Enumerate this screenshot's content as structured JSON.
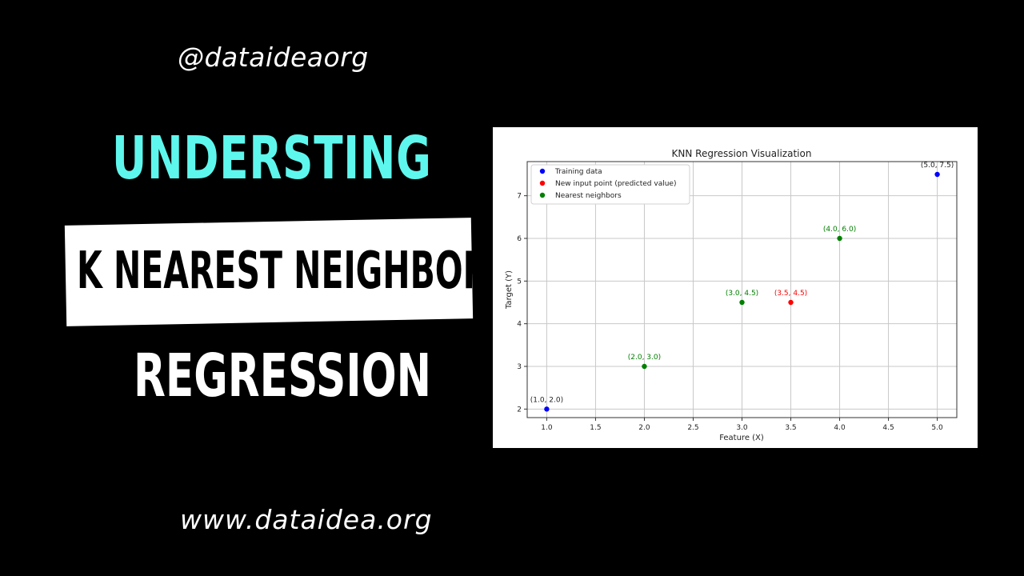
{
  "header": {
    "handle": "@dataideaorg"
  },
  "headline": {
    "line1": "UNDERSTING",
    "line2": "K NEAREST NEIGHBORS",
    "line3": "REGRESSION"
  },
  "footer": {
    "url": "www.dataidea.org"
  },
  "colors": {
    "background": "#000000",
    "accent": "#5ef7ee",
    "training": "#0000ff",
    "new_point": "#ff0000",
    "neighbors": "#008000"
  },
  "chart_data": {
    "type": "scatter",
    "title": "KNN Regression Visualization",
    "xlabel": "Feature (X)",
    "ylabel": "Target (Y)",
    "xlim": [
      0.8,
      5.2
    ],
    "ylim": [
      1.8,
      7.8
    ],
    "xticks": [
      "1.0",
      "1.5",
      "2.0",
      "2.5",
      "3.0",
      "3.5",
      "4.0",
      "4.5",
      "5.0"
    ],
    "yticks": [
      "2",
      "3",
      "4",
      "5",
      "6",
      "7"
    ],
    "grid": true,
    "legend_position": "upper-left",
    "series": [
      {
        "name": "Training data",
        "color": "#0000ff",
        "points": [
          {
            "x": 1.0,
            "y": 2.0,
            "label": "(1.0, 2.0)"
          },
          {
            "x": 5.0,
            "y": 7.5,
            "label": "(5.0, 7.5)"
          }
        ]
      },
      {
        "name": "New input point (predicted value)",
        "color": "#ff0000",
        "points": [
          {
            "x": 3.5,
            "y": 4.5,
            "label": "(3.5, 4.5)"
          }
        ]
      },
      {
        "name": "Nearest neighbors",
        "color": "#008000",
        "points": [
          {
            "x": 2.0,
            "y": 3.0,
            "label": "(2.0, 3.0)"
          },
          {
            "x": 3.0,
            "y": 4.5,
            "label": "(3.0, 4.5)"
          },
          {
            "x": 4.0,
            "y": 6.0,
            "label": "(4.0, 6.0)"
          }
        ]
      }
    ]
  }
}
